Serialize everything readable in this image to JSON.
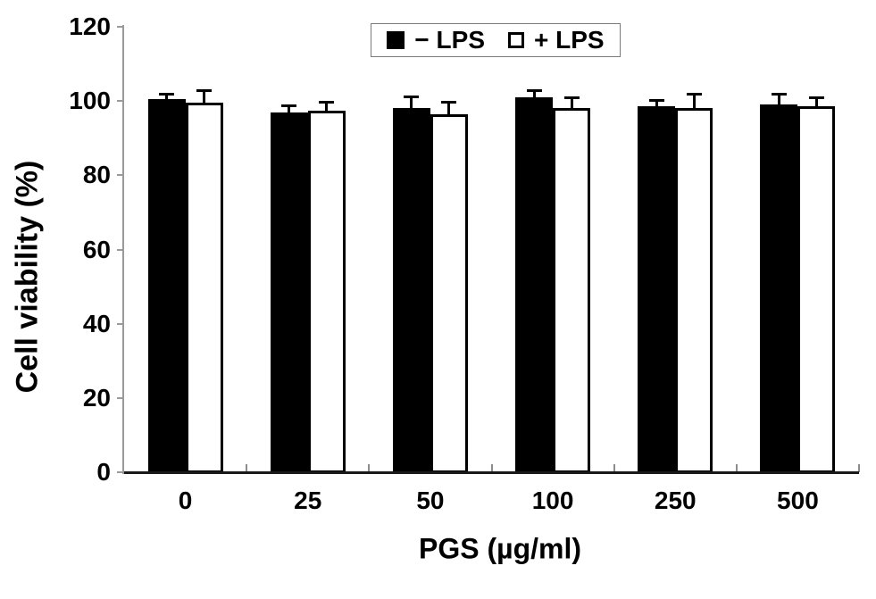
{
  "chart_data": {
    "type": "bar",
    "categories": [
      "0",
      "25",
      "50",
      "100",
      "250",
      "500"
    ],
    "series": [
      {
        "name": "− LPS",
        "fill": "#000000",
        "values": [
          100.5,
          97,
          98,
          101,
          98.5,
          99
        ],
        "errors": [
          1.5,
          1.8,
          3.3,
          2,
          1.8,
          3
        ]
      },
      {
        "name": "+ LPS",
        "fill": "#ffffff",
        "values": [
          99.5,
          97.5,
          96.5,
          98,
          98,
          98.5
        ],
        "errors": [
          3.4,
          2.2,
          3.2,
          3,
          4,
          2.4
        ]
      }
    ],
    "xlabel": "PGS (µg/ml)",
    "ylabel": "Cell viability (%)",
    "ylim": [
      0,
      120
    ],
    "y_ticks": [
      0,
      20,
      40,
      60,
      80,
      100,
      120
    ],
    "error_bars": "upper-cap",
    "grid": false,
    "legend_position": "top-center",
    "colors": {
      "bar_outline": "#000000",
      "y_axis": "#9a9a9a",
      "x_axis": "#1a1a1a",
      "x_tick": "#8c8c8c",
      "legend_border": "#7a7a7a"
    }
  }
}
